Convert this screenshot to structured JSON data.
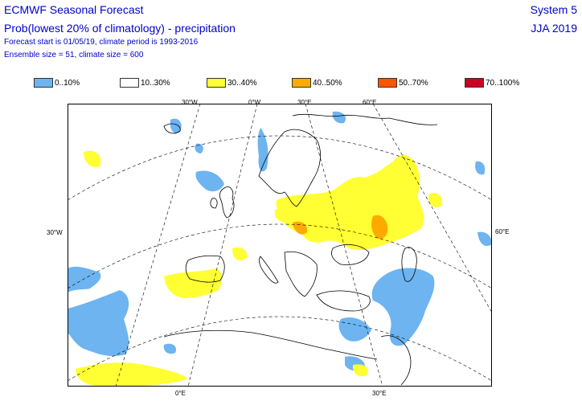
{
  "header": {
    "title": "ECMWF Seasonal Forecast",
    "subtitle": "Prob(lowest 20% of climatology) - precipitation",
    "forecast_info": "Forecast start is 01/05/19, climate period is 1993-2016",
    "ensemble_info": "Ensemble size = 51, climate size = 600",
    "system": "System 5",
    "season": "JJA 2019"
  },
  "legend": [
    {
      "label": "0..10%",
      "color": "#6db4f0"
    },
    {
      "label": "10..30%",
      "color": "#ffffff"
    },
    {
      "label": "30..40%",
      "color": "#ffff33"
    },
    {
      "label": "40..50%",
      "color": "#ffaa00"
    },
    {
      "label": "50..70%",
      "color": "#ff5500"
    },
    {
      "label": "70..100%",
      "color": "#cc0022"
    }
  ],
  "axes": {
    "top": [
      "30°W",
      "0°W",
      "30°E",
      "60°E"
    ],
    "left": "30°W",
    "right": "60°E",
    "bottom": [
      "0°E",
      "30°E"
    ]
  },
  "colors": {
    "text": "#0000cc",
    "blue": "#6db4f0",
    "yellow": "#ffff33",
    "orange": "#ffaa00"
  }
}
